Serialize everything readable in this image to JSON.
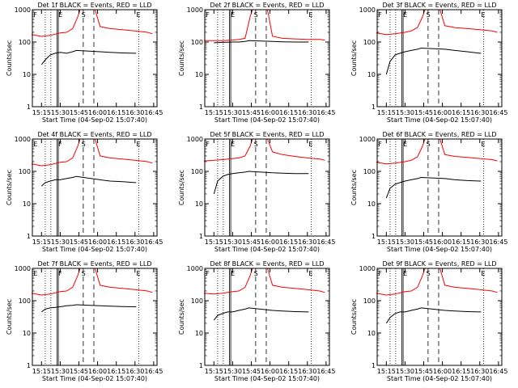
{
  "chart_data": [
    {
      "type": "line",
      "title": "Det 1f BLACK = Events, RED = LLD",
      "xlabel": "Start Time (04-Sep-02 15:07:40)",
      "ylabel": "Counts/sec",
      "x_ticks": [
        "15:15",
        "15:30",
        "15:45",
        "16:00",
        "16:15",
        "16:30",
        "16:45"
      ],
      "y_ticks": [
        "1",
        "10",
        "100",
        "1000"
      ],
      "xlim": [
        "15:07:40",
        "16:47:40"
      ],
      "ylim": [
        1,
        1000
      ],
      "yscale": "log",
      "grid": false,
      "legend": "none",
      "markers": [
        "F",
        "E",
        "S",
        "E"
      ],
      "series": [
        {
          "name": "RED",
          "color": "#ff0000",
          "x": [
            "15:07",
            "15:15",
            "15:22",
            "15:30",
            "15:35",
            "15:40",
            "15:44",
            "15:46",
            "15:50",
            "15:58",
            "16:02",
            "16:10",
            "16:20",
            "16:30",
            "16:40",
            "16:44"
          ],
          "y": [
            170,
            150,
            160,
            190,
            200,
            260,
            600,
            1000,
            1000,
            1000,
            300,
            260,
            240,
            220,
            200,
            180
          ]
        },
        {
          "name": "BLACK",
          "color": "#000000",
          "x": [
            "15:15",
            "15:18",
            "15:22",
            "15:26",
            "15:30",
            "15:35",
            "15:40",
            "15:43",
            "16:02",
            "16:10",
            "16:20",
            "16:30",
            "16:31"
          ],
          "y": [
            20,
            28,
            40,
            45,
            48,
            45,
            50,
            55,
            50,
            48,
            46,
            45,
            45
          ]
        }
      ]
    },
    {
      "type": "line",
      "title": "Det 2f BLACK = Events, RED = LLD",
      "xlabel": "Start Time (04-Sep-02 15:07:40)",
      "ylabel": "Counts/sec",
      "x_ticks": [
        "15:15",
        "15:30",
        "15:45",
        "16:00",
        "16:15",
        "16:30",
        "16:45"
      ],
      "y_ticks": [
        "1",
        "10",
        "100",
        "1000"
      ],
      "xlim": [
        "15:07:40",
        "16:47:40"
      ],
      "ylim": [
        1,
        1000
      ],
      "yscale": "log",
      "grid": false,
      "legend": "none",
      "markers": [
        "F",
        "E",
        "S",
        "E"
      ],
      "series": [
        {
          "name": "RED",
          "color": "#ff0000",
          "x": [
            "15:07",
            "15:15",
            "15:22",
            "15:30",
            "15:35",
            "15:40",
            "15:44",
            "15:46",
            "15:50",
            "15:58",
            "16:02",
            "16:10",
            "16:20",
            "16:30",
            "16:40",
            "16:44"
          ],
          "y": [
            110,
            110,
            110,
            115,
            120,
            130,
            600,
            1000,
            1000,
            1000,
            150,
            130,
            125,
            120,
            120,
            115
          ]
        },
        {
          "name": "BLACK",
          "color": "#000000",
          "x": [
            "15:15",
            "15:22",
            "15:30",
            "15:35",
            "15:40",
            "15:43",
            "16:02",
            "16:10",
            "16:20",
            "16:30",
            "16:31"
          ],
          "y": [
            95,
            98,
            100,
            100,
            105,
            110,
            105,
            102,
            100,
            100,
            100
          ]
        }
      ]
    },
    {
      "type": "line",
      "title": "Det 3f BLACK = Events, RED = LLD",
      "xlabel": "Start Time (04-Sep-02 15:07:40)",
      "ylabel": "Counts/sec",
      "x_ticks": [
        "15:15",
        "15:30",
        "15:45",
        "16:00",
        "16:15",
        "16:30",
        "16:45"
      ],
      "y_ticks": [
        "1",
        "10",
        "100",
        "1000"
      ],
      "xlim": [
        "15:07:40",
        "16:47:40"
      ],
      "ylim": [
        1,
        1000
      ],
      "yscale": "log",
      "grid": false,
      "legend": "none",
      "markers": [
        "F",
        "E",
        "S",
        "E"
      ],
      "series": [
        {
          "name": "RED",
          "color": "#ff0000",
          "x": [
            "15:07",
            "15:15",
            "15:22",
            "15:30",
            "15:35",
            "15:40",
            "15:44",
            "15:46",
            "15:50",
            "15:58",
            "16:02",
            "16:10",
            "16:20",
            "16:30",
            "16:40",
            "16:44"
          ],
          "y": [
            190,
            170,
            180,
            200,
            220,
            280,
            600,
            1000,
            1000,
            1000,
            320,
            280,
            260,
            240,
            220,
            200
          ]
        },
        {
          "name": "BLACK",
          "color": "#000000",
          "x": [
            "15:15",
            "15:18",
            "15:22",
            "15:26",
            "15:30",
            "15:35",
            "15:40",
            "15:43",
            "16:02",
            "16:10",
            "16:20",
            "16:30",
            "16:31"
          ],
          "y": [
            10,
            25,
            40,
            45,
            50,
            55,
            60,
            65,
            60,
            55,
            50,
            45,
            45
          ]
        }
      ]
    },
    {
      "type": "line",
      "title": "Det 4f BLACK = Events, RED = LLD",
      "xlabel": "Start Time (04-Sep-02 15:07:40)",
      "ylabel": "Counts/sec",
      "x_ticks": [
        "15:15",
        "15:30",
        "15:45",
        "16:00",
        "16:15",
        "16:30",
        "16:45"
      ],
      "y_ticks": [
        "1",
        "10",
        "100",
        "1000"
      ],
      "xlim": [
        "15:07:40",
        "16:47:40"
      ],
      "ylim": [
        1,
        1000
      ],
      "yscale": "log",
      "grid": false,
      "legend": "none",
      "markers": [
        "E",
        "F",
        "S",
        "E"
      ],
      "series": [
        {
          "name": "RED",
          "color": "#ff0000",
          "x": [
            "15:07",
            "15:15",
            "15:22",
            "15:30",
            "15:35",
            "15:40",
            "15:44",
            "15:46",
            "15:50",
            "15:58",
            "16:02",
            "16:10",
            "16:20",
            "16:30",
            "16:40",
            "16:44"
          ],
          "y": [
            170,
            150,
            160,
            190,
            200,
            260,
            600,
            1000,
            1000,
            1000,
            300,
            260,
            240,
            220,
            200,
            180
          ]
        },
        {
          "name": "BLACK",
          "color": "#000000",
          "x": [
            "15:15",
            "15:18",
            "15:22",
            "15:26",
            "15:30",
            "15:35",
            "15:40",
            "15:43",
            "16:02",
            "16:10",
            "16:20",
            "16:30",
            "16:31"
          ],
          "y": [
            35,
            45,
            50,
            55,
            55,
            60,
            65,
            70,
            55,
            50,
            48,
            45,
            45
          ]
        }
      ]
    },
    {
      "type": "line",
      "title": "Det 5f BLACK = Events, RED = LLD",
      "xlabel": "Start Time (04-Sep-02 15:07:40)",
      "ylabel": "Counts/sec",
      "x_ticks": [
        "15:15",
        "15:30",
        "15:45",
        "16:00",
        "16:15",
        "16:30",
        "16:45"
      ],
      "y_ticks": [
        "1",
        "10",
        "100",
        "1000"
      ],
      "xlim": [
        "15:07:40",
        "16:47:40"
      ],
      "ylim": [
        1,
        1000
      ],
      "yscale": "log",
      "grid": false,
      "legend": "none",
      "markers": [
        "F",
        "E",
        "S",
        "E"
      ],
      "series": [
        {
          "name": "RED",
          "color": "#ff0000",
          "x": [
            "15:07",
            "15:15",
            "15:22",
            "15:30",
            "15:35",
            "15:40",
            "15:44",
            "15:46",
            "15:50",
            "15:58",
            "16:02",
            "16:10",
            "16:20",
            "16:30",
            "16:40",
            "16:44"
          ],
          "y": [
            210,
            220,
            230,
            250,
            260,
            300,
            600,
            1000,
            1000,
            1000,
            400,
            330,
            290,
            260,
            240,
            220
          ]
        },
        {
          "name": "BLACK",
          "color": "#000000",
          "x": [
            "15:15",
            "15:18",
            "15:22",
            "15:26",
            "15:30",
            "15:35",
            "15:40",
            "15:43",
            "16:02",
            "16:10",
            "16:20",
            "16:30",
            "16:31"
          ],
          "y": [
            20,
            50,
            70,
            80,
            85,
            90,
            95,
            100,
            90,
            88,
            85,
            85,
            85
          ]
        }
      ]
    },
    {
      "type": "line",
      "title": "Det 6f BLACK = Events, RED = LLD",
      "xlabel": "Start Time (04-Sep-02 15:07:40)",
      "ylabel": "Counts/sec",
      "x_ticks": [
        "15:15",
        "15:30",
        "15:45",
        "16:00",
        "16:15",
        "16:30",
        "16:45"
      ],
      "y_ticks": [
        "1",
        "10",
        "100",
        "1000"
      ],
      "xlim": [
        "15:07:40",
        "16:47:40"
      ],
      "ylim": [
        1,
        1000
      ],
      "yscale": "log",
      "grid": false,
      "legend": "none",
      "markers": [
        "F",
        "E",
        "S",
        "E"
      ],
      "series": [
        {
          "name": "RED",
          "color": "#ff0000",
          "x": [
            "15:07",
            "15:15",
            "15:22",
            "15:30",
            "15:35",
            "15:40",
            "15:44",
            "15:46",
            "15:50",
            "15:58",
            "16:02",
            "16:10",
            "16:20",
            "16:30",
            "16:40",
            "16:44"
          ],
          "y": [
            190,
            170,
            180,
            200,
            220,
            280,
            600,
            1000,
            1000,
            1000,
            330,
            290,
            270,
            250,
            230,
            210
          ]
        },
        {
          "name": "BLACK",
          "color": "#000000",
          "x": [
            "15:15",
            "15:18",
            "15:22",
            "15:26",
            "15:30",
            "15:35",
            "15:40",
            "15:43",
            "16:02",
            "16:10",
            "16:20",
            "16:30",
            "16:31"
          ],
          "y": [
            15,
            30,
            40,
            45,
            50,
            55,
            60,
            65,
            60,
            55,
            52,
            50,
            50
          ]
        }
      ]
    },
    {
      "type": "line",
      "title": "Det 7f BLACK = Events, RED = LLD",
      "xlabel": "Start Time (04-Sep-02 15:07:40)",
      "ylabel": "Counts/sec",
      "x_ticks": [
        "15:15",
        "15:30",
        "15:45",
        "16:00",
        "16:15",
        "16:30",
        "16:45"
      ],
      "y_ticks": [
        "1",
        "10",
        "100",
        "1000"
      ],
      "xlim": [
        "15:07:40",
        "16:47:40"
      ],
      "ylim": [
        1,
        1000
      ],
      "yscale": "log",
      "grid": false,
      "legend": "none",
      "markers": [
        "E",
        "F",
        "S",
        "E"
      ],
      "series": [
        {
          "name": "RED",
          "color": "#ff0000",
          "x": [
            "15:07",
            "15:15",
            "15:22",
            "15:30",
            "15:35",
            "15:40",
            "15:44",
            "15:46",
            "15:50",
            "15:58",
            "16:02",
            "16:10",
            "16:20",
            "16:30",
            "16:40",
            "16:44"
          ],
          "y": [
            170,
            150,
            160,
            190,
            200,
            260,
            600,
            1000,
            1000,
            1000,
            300,
            260,
            240,
            220,
            200,
            180
          ]
        },
        {
          "name": "BLACK",
          "color": "#000000",
          "x": [
            "15:15",
            "15:18",
            "15:22",
            "15:26",
            "15:30",
            "15:35",
            "15:40",
            "15:43",
            "16:02",
            "16:10",
            "16:20",
            "16:30",
            "16:31"
          ],
          "y": [
            45,
            55,
            60,
            62,
            65,
            70,
            72,
            75,
            70,
            68,
            66,
            65,
            65
          ]
        }
      ]
    },
    {
      "type": "line",
      "title": "Det 8f BLACK = Events, RED = LLD",
      "xlabel": "Start Time (04-Sep-02 15:07:40)",
      "ylabel": "Counts/sec",
      "x_ticks": [
        "15:15",
        "15:30",
        "15:45",
        "16:00",
        "16:15",
        "16:30",
        "16:45"
      ],
      "y_ticks": [
        "1",
        "10",
        "100",
        "1000"
      ],
      "xlim": [
        "15:07:40",
        "16:47:40"
      ],
      "ylim": [
        1,
        1000
      ],
      "yscale": "log",
      "grid": false,
      "legend": "none",
      "markers": [
        "F",
        "E",
        "S",
        "E"
      ],
      "series": [
        {
          "name": "RED",
          "color": "#ff0000",
          "x": [
            "15:07",
            "15:15",
            "15:22",
            "15:30",
            "15:35",
            "15:40",
            "15:44",
            "15:46",
            "15:50",
            "15:58",
            "16:02",
            "16:10",
            "16:20",
            "16:30",
            "16:40",
            "16:44"
          ],
          "y": [
            170,
            160,
            170,
            190,
            200,
            260,
            600,
            1000,
            1000,
            1000,
            300,
            260,
            240,
            220,
            200,
            180
          ]
        },
        {
          "name": "BLACK",
          "color": "#000000",
          "x": [
            "15:15",
            "15:18",
            "15:22",
            "15:26",
            "15:30",
            "15:35",
            "15:40",
            "15:43",
            "16:02",
            "16:10",
            "16:20",
            "16:30",
            "16:31"
          ],
          "y": [
            25,
            35,
            40,
            45,
            45,
            50,
            55,
            60,
            50,
            48,
            46,
            45,
            45
          ]
        }
      ]
    },
    {
      "type": "line",
      "title": "Det 9f BLACK = Events, RED = LLD",
      "xlabel": "Start Time (04-Sep-02 15:07:40)",
      "ylabel": "Counts/sec",
      "x_ticks": [
        "15:15",
        "15:30",
        "15:45",
        "16:00",
        "16:15",
        "16:30",
        "16:45"
      ],
      "y_ticks": [
        "1",
        "10",
        "100",
        "1000"
      ],
      "xlim": [
        "15:07:40",
        "16:47:40"
      ],
      "ylim": [
        1,
        1000
      ],
      "yscale": "log",
      "grid": false,
      "legend": "none",
      "markers": [
        "F",
        "E",
        "S",
        "E"
      ],
      "series": [
        {
          "name": "RED",
          "color": "#ff0000",
          "x": [
            "15:07",
            "15:15",
            "15:22",
            "15:30",
            "15:35",
            "15:40",
            "15:44",
            "15:46",
            "15:50",
            "15:58",
            "16:02",
            "16:10",
            "16:20",
            "16:30",
            "16:40",
            "16:44"
          ],
          "y": [
            170,
            150,
            160,
            190,
            200,
            260,
            600,
            1000,
            1000,
            1000,
            300,
            260,
            240,
            220,
            200,
            180
          ]
        },
        {
          "name": "BLACK",
          "color": "#000000",
          "x": [
            "15:15",
            "15:18",
            "15:22",
            "15:26",
            "15:30",
            "15:35",
            "15:40",
            "15:43",
            "16:02",
            "16:10",
            "16:20",
            "16:30",
            "16:31"
          ],
          "y": [
            20,
            30,
            40,
            45,
            45,
            50,
            55,
            60,
            50,
            48,
            46,
            45,
            45
          ]
        }
      ]
    }
  ],
  "overlay": {
    "solid_times": [
      "15:27:30",
      "15:28:30"
    ],
    "dashed_times": [
      "15:48:30",
      "15:57:00"
    ],
    "dotted_times": [
      "15:18:00",
      "15:22:30",
      "16:33:00"
    ],
    "marker_times": [
      "15:08:30",
      "15:28:30",
      "15:47:00",
      "16:31:00"
    ]
  }
}
